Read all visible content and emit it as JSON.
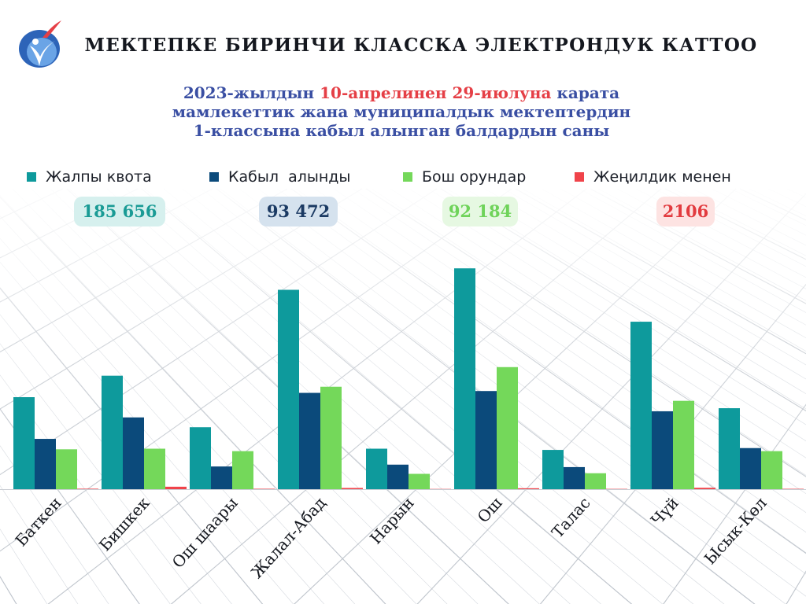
{
  "header": {
    "title": "МЕКТЕПКЕ БИРИНЧИ КЛАССКА ЭЛЕКТРОНДУК КАТТОО",
    "subtitle_line1_a": "2023-жылдын ",
    "subtitle_line1_hl": "10-апрелинен 29-июлуна",
    "subtitle_line1_b": " карата",
    "subtitle_line2": "мамлекеттик жана муниципалдык мектептердин",
    "subtitle_line3": "1-классына кабыл алынган балдардын саны"
  },
  "legend": [
    {
      "label": "Жалпы квота",
      "color": "#0e9a9c"
    },
    {
      "label": "Кабыл  алынды",
      "color": "#0b4a7b"
    },
    {
      "label": "Бош орундар",
      "color": "#74d85a"
    },
    {
      "label": "Жеңилдик менен",
      "color": "#f0434a"
    }
  ],
  "totals": [
    {
      "value": "185 656",
      "color": "#1a9b95",
      "bg": "#d6f0ee"
    },
    {
      "value": "93 472",
      "color": "#1b3a63",
      "bg": "#d5e2ee"
    },
    {
      "value": "92 184",
      "color": "#6fd35a",
      "bg": "#e6f8e2"
    },
    {
      "value": "2106",
      "color": "#e23b3f",
      "bg": "#fde3e2"
    }
  ],
  "chart_data": {
    "type": "bar",
    "categories": [
      "Баткен",
      "Бишкек",
      "Ош шаары",
      "Жалал-Абад",
      "Нарын",
      "Ош",
      "Талас",
      "Чүй",
      "Ысык-Көл"
    ],
    "series": [
      {
        "name": "Жалпы квота",
        "color": "#0e9a9c",
        "values": [
          15000,
          18500,
          10100,
          32500,
          6600,
          36000,
          6400,
          27300,
          13200
        ]
      },
      {
        "name": "Кабыл  алынды",
        "color": "#0b4a7b",
        "values": [
          8200,
          11700,
          3700,
          15700,
          4000,
          16000,
          3600,
          12700,
          6700
        ]
      },
      {
        "name": "Бош орундар",
        "color": "#74d85a",
        "values": [
          6500,
          6600,
          6200,
          16700,
          2500,
          19900,
          2600,
          14400,
          6200
        ]
      },
      {
        "name": "Жеңилдик менен",
        "color": "#f0434a",
        "values": [
          80,
          400,
          70,
          200,
          40,
          150,
          50,
          230,
          60
        ]
      }
    ],
    "ylim": [
      0,
      40000
    ],
    "grid": false,
    "legend_position": "top"
  }
}
